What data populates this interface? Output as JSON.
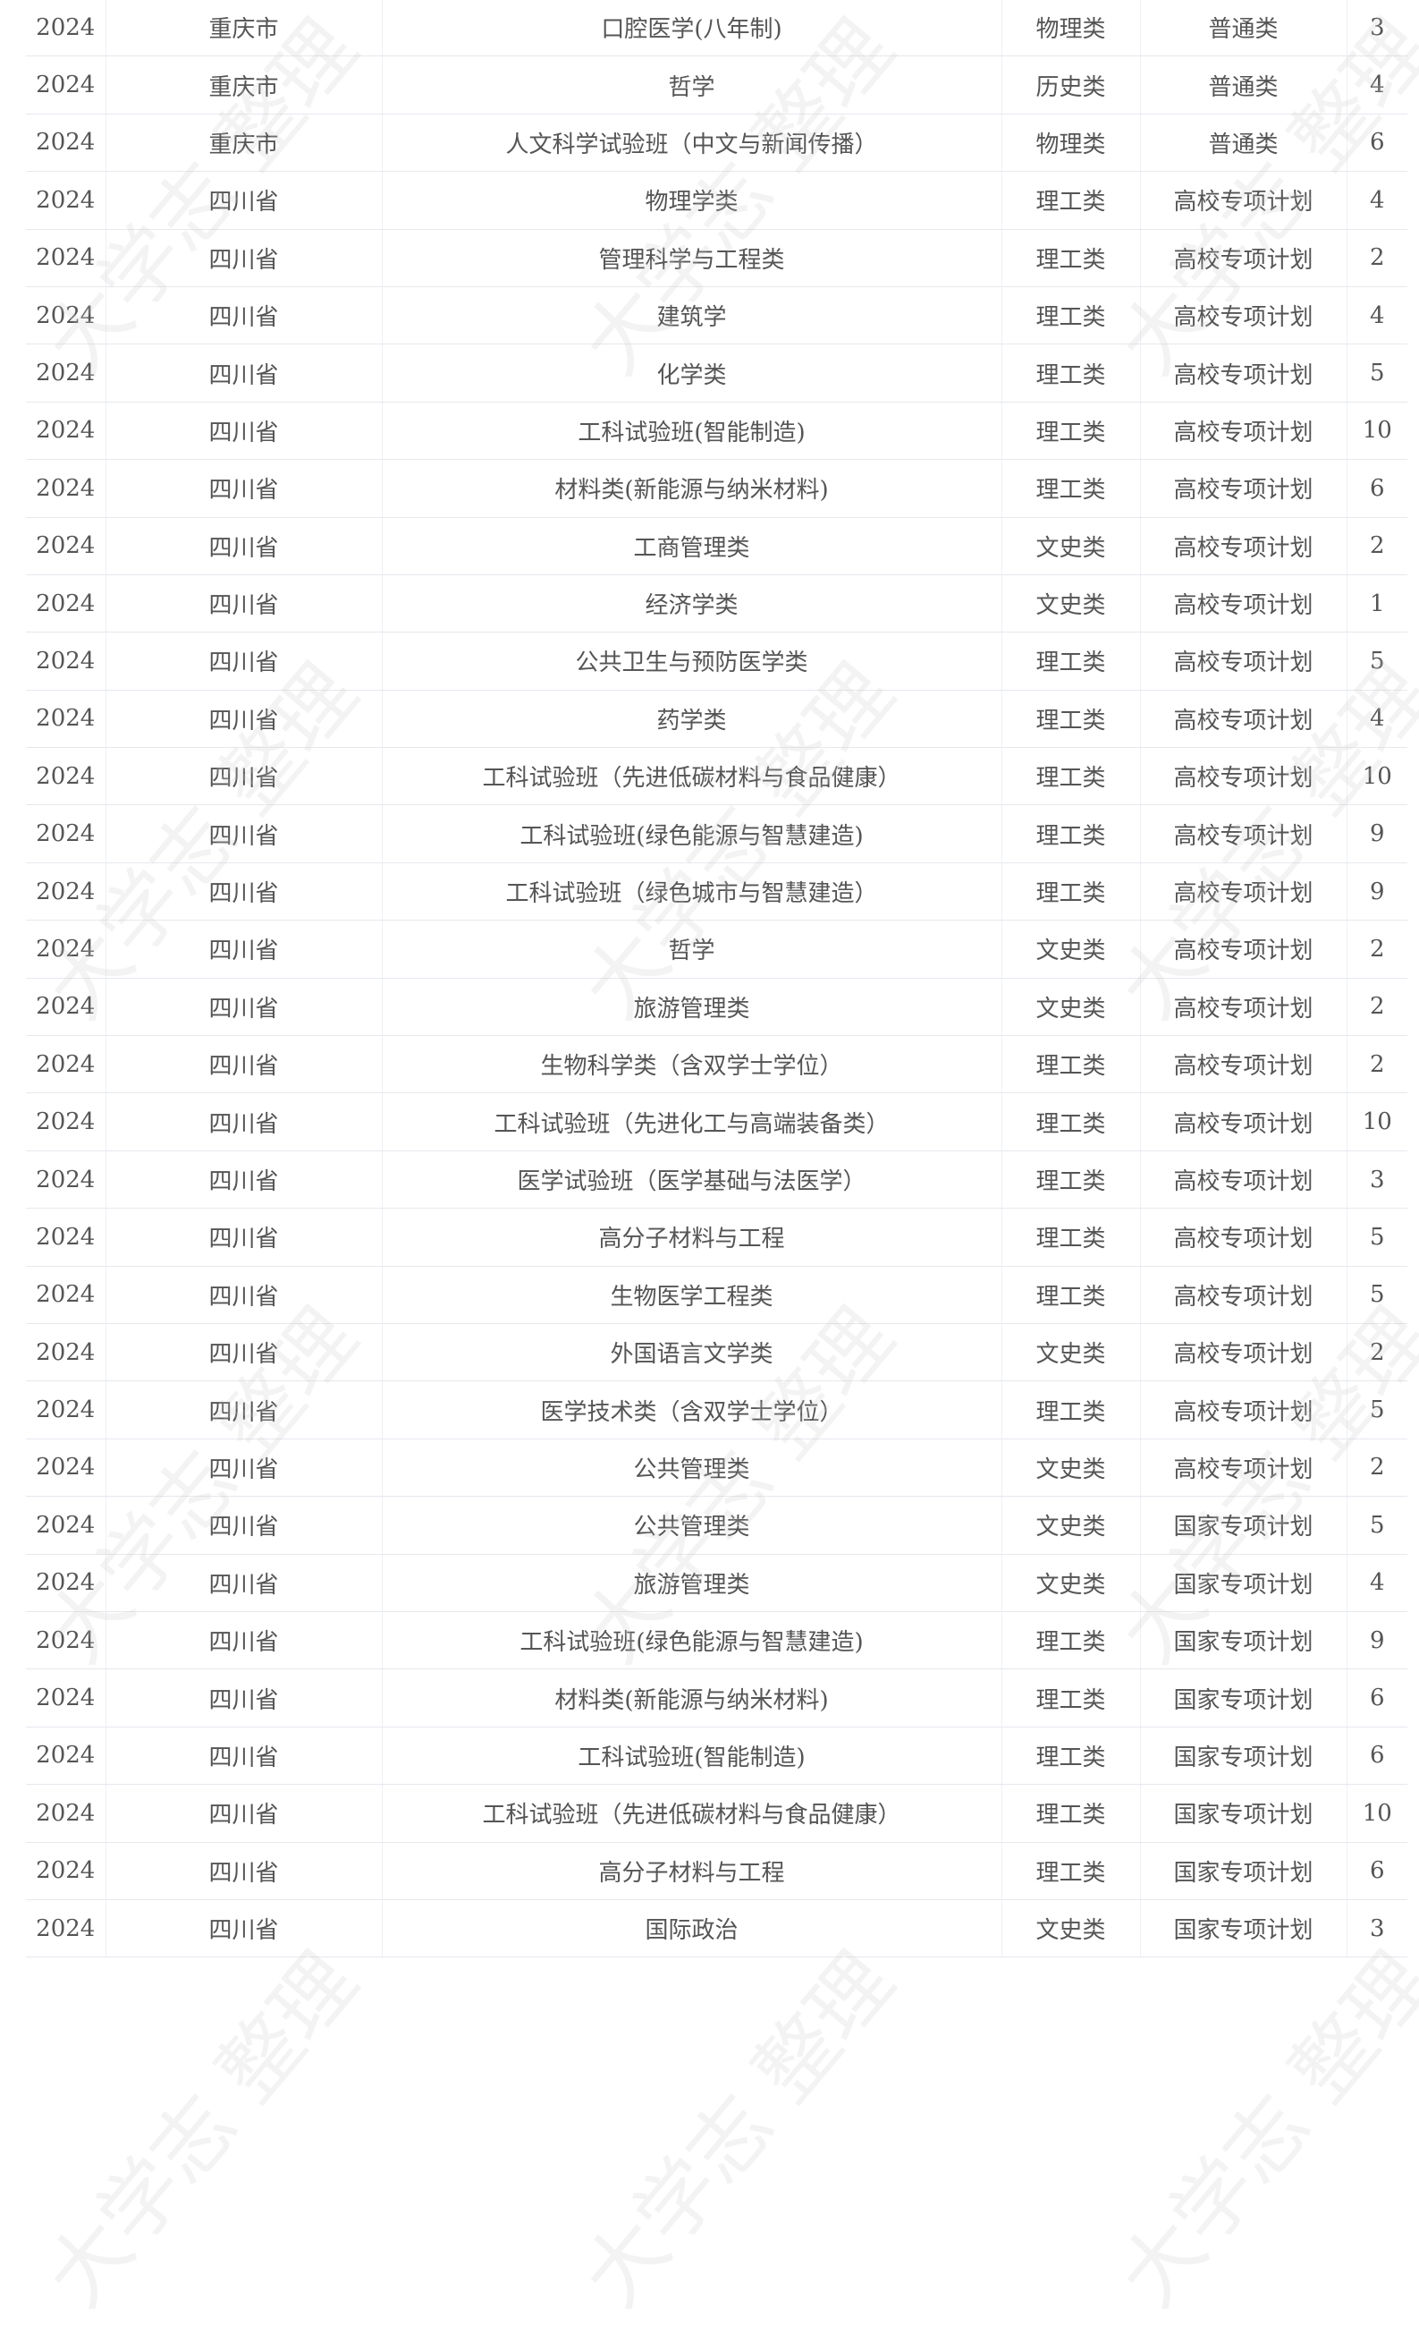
{
  "watermark": "大学志 整理",
  "rows": [
    [
      "2024",
      "重庆市",
      "口腔医学(八年制)",
      "物理类",
      "普通类",
      "3"
    ],
    [
      "2024",
      "重庆市",
      "哲学",
      "历史类",
      "普通类",
      "4"
    ],
    [
      "2024",
      "重庆市",
      "人文科学试验班（中文与新闻传播）",
      "物理类",
      "普通类",
      "6"
    ],
    [
      "2024",
      "四川省",
      "物理学类",
      "理工类",
      "高校专项计划",
      "4"
    ],
    [
      "2024",
      "四川省",
      "管理科学与工程类",
      "理工类",
      "高校专项计划",
      "2"
    ],
    [
      "2024",
      "四川省",
      "建筑学",
      "理工类",
      "高校专项计划",
      "4"
    ],
    [
      "2024",
      "四川省",
      "化学类",
      "理工类",
      "高校专项计划",
      "5"
    ],
    [
      "2024",
      "四川省",
      "工科试验班(智能制造)",
      "理工类",
      "高校专项计划",
      "10"
    ],
    [
      "2024",
      "四川省",
      "材料类(新能源与纳米材料)",
      "理工类",
      "高校专项计划",
      "6"
    ],
    [
      "2024",
      "四川省",
      "工商管理类",
      "文史类",
      "高校专项计划",
      "2"
    ],
    [
      "2024",
      "四川省",
      "经济学类",
      "文史类",
      "高校专项计划",
      "1"
    ],
    [
      "2024",
      "四川省",
      "公共卫生与预防医学类",
      "理工类",
      "高校专项计划",
      "5"
    ],
    [
      "2024",
      "四川省",
      "药学类",
      "理工类",
      "高校专项计划",
      "4"
    ],
    [
      "2024",
      "四川省",
      "工科试验班（先进低碳材料与食品健康）",
      "理工类",
      "高校专项计划",
      "10"
    ],
    [
      "2024",
      "四川省",
      "工科试验班(绿色能源与智慧建造)",
      "理工类",
      "高校专项计划",
      "9"
    ],
    [
      "2024",
      "四川省",
      "工科试验班（绿色城市与智慧建造）",
      "理工类",
      "高校专项计划",
      "9"
    ],
    [
      "2024",
      "四川省",
      "哲学",
      "文史类",
      "高校专项计划",
      "2"
    ],
    [
      "2024",
      "四川省",
      "旅游管理类",
      "文史类",
      "高校专项计划",
      "2"
    ],
    [
      "2024",
      "四川省",
      "生物科学类（含双学士学位）",
      "理工类",
      "高校专项计划",
      "2"
    ],
    [
      "2024",
      "四川省",
      "工科试验班（先进化工与高端装备类）",
      "理工类",
      "高校专项计划",
      "10"
    ],
    [
      "2024",
      "四川省",
      "医学试验班（医学基础与法医学）",
      "理工类",
      "高校专项计划",
      "3"
    ],
    [
      "2024",
      "四川省",
      "高分子材料与工程",
      "理工类",
      "高校专项计划",
      "5"
    ],
    [
      "2024",
      "四川省",
      "生物医学工程类",
      "理工类",
      "高校专项计划",
      "5"
    ],
    [
      "2024",
      "四川省",
      "外国语言文学类",
      "文史类",
      "高校专项计划",
      "2"
    ],
    [
      "2024",
      "四川省",
      "医学技术类（含双学士学位）",
      "理工类",
      "高校专项计划",
      "5"
    ],
    [
      "2024",
      "四川省",
      "公共管理类",
      "文史类",
      "高校专项计划",
      "2"
    ],
    [
      "2024",
      "四川省",
      "公共管理类",
      "文史类",
      "国家专项计划",
      "5"
    ],
    [
      "2024",
      "四川省",
      "旅游管理类",
      "文史类",
      "国家专项计划",
      "4"
    ],
    [
      "2024",
      "四川省",
      "工科试验班(绿色能源与智慧建造)",
      "理工类",
      "国家专项计划",
      "9"
    ],
    [
      "2024",
      "四川省",
      "材料类(新能源与纳米材料)",
      "理工类",
      "国家专项计划",
      "6"
    ],
    [
      "2024",
      "四川省",
      "工科试验班(智能制造)",
      "理工类",
      "国家专项计划",
      "6"
    ],
    [
      "2024",
      "四川省",
      "工科试验班（先进低碳材料与食品健康）",
      "理工类",
      "国家专项计划",
      "10"
    ],
    [
      "2024",
      "四川省",
      "高分子材料与工程",
      "理工类",
      "国家专项计划",
      "6"
    ],
    [
      "2024",
      "四川省",
      "国际政治",
      "文史类",
      "国家专项计划",
      "3"
    ]
  ]
}
